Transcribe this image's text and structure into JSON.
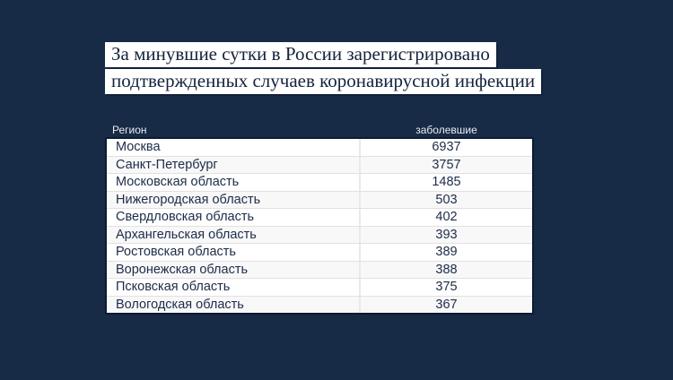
{
  "page": {
    "background_color": "#172A46",
    "headline_box_color": "#FFFFFF",
    "headline_text_color": "#14233C",
    "table_text_color": "#1D2C48",
    "table_border_color": "#0D1B2F"
  },
  "headline": {
    "line1": "За минувшие сутки в России зарегистрировано",
    "line2": "подтвержденных случаев коронавирусной инфекции"
  },
  "table": {
    "columns": {
      "region": "Регион",
      "cases": "заболевшие"
    },
    "rows": [
      {
        "region": "Москва",
        "cases": "6937"
      },
      {
        "region": "Санкт-Петербург",
        "cases": "3757"
      },
      {
        "region": "Московская область",
        "cases": "1485"
      },
      {
        "region": "Нижегородская область",
        "cases": "503"
      },
      {
        "region": "Свердловская область",
        "cases": "402"
      },
      {
        "region": "Архангельская область",
        "cases": "393"
      },
      {
        "region": "Ростовская область",
        "cases": "389"
      },
      {
        "region": "Воронежская область",
        "cases": "388"
      },
      {
        "region": "Псковская область",
        "cases": "375"
      },
      {
        "region": "Вологодская область",
        "cases": "367"
      }
    ]
  },
  "chart_data": {
    "type": "table",
    "title": "За минувшие сутки в России зарегистрировано подтвержденных случаев коронавирусной инфекции",
    "columns": [
      "Регион",
      "заболевшие"
    ],
    "rows": [
      [
        "Москва",
        6937
      ],
      [
        "Санкт-Петербург",
        3757
      ],
      [
        "Московская область",
        1485
      ],
      [
        "Нижегородская область",
        503
      ],
      [
        "Свердловская область",
        402
      ],
      [
        "Архангельская область",
        393
      ],
      [
        "Ростовская область",
        389
      ],
      [
        "Воронежская область",
        388
      ],
      [
        "Псковская область",
        375
      ],
      [
        "Вологодская область",
        367
      ]
    ],
    "legend_position": "none",
    "grid": "row-separators"
  }
}
